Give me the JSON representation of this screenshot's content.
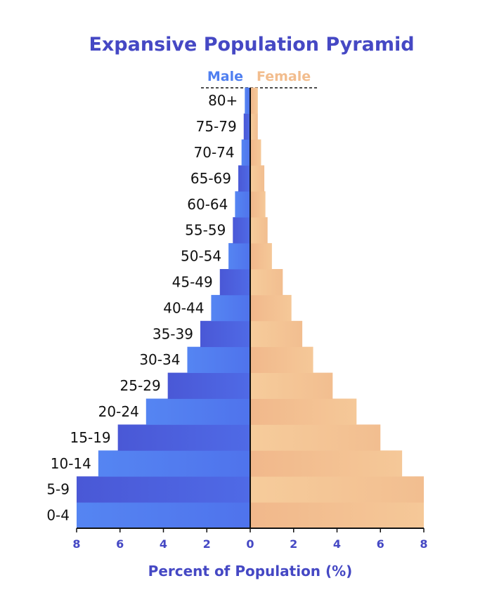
{
  "chart_data": {
    "type": "bar",
    "orientation": "horizontal-pyramid",
    "title": "Expansive Population Pyramid",
    "xlabel": "Percent of Population (%)",
    "ylabel": "",
    "categories": [
      "0-4",
      "5-9",
      "10-14",
      "15-19",
      "20-24",
      "25-29",
      "30-34",
      "35-39",
      "40-44",
      "45-49",
      "50-54",
      "55-59",
      "60-64",
      "65-69",
      "70-74",
      "75-79",
      "80+"
    ],
    "series": [
      {
        "name": "Male",
        "values": [
          8.0,
          8.0,
          7.0,
          6.1,
          4.8,
          3.8,
          2.9,
          2.3,
          1.8,
          1.4,
          1.0,
          0.8,
          0.7,
          0.55,
          0.4,
          0.3,
          0.25
        ]
      },
      {
        "name": "Female",
        "values": [
          8.0,
          8.0,
          7.0,
          6.0,
          4.9,
          3.8,
          2.9,
          2.4,
          1.9,
          1.5,
          1.0,
          0.8,
          0.7,
          0.65,
          0.5,
          0.35,
          0.35
        ]
      }
    ],
    "xlim": [
      -8,
      8
    ],
    "xticks": [
      -8,
      -6,
      -4,
      -2,
      0,
      2,
      4,
      6,
      8
    ],
    "xtick_labels": [
      "8",
      "6",
      "4",
      "2",
      "0",
      "2",
      "4",
      "6",
      "8"
    ],
    "legend": "top-center",
    "grid": false
  },
  "colors": {
    "title": "#4548c4",
    "male_label": "#4f7ff0",
    "female_label": "#f2bd8e",
    "male_dark": "#4a5bd9",
    "male_light": "#5686f3",
    "female_dark": "#f0b88c",
    "female_light": "#f7cf9c",
    "axis_text": "#4548c4"
  }
}
